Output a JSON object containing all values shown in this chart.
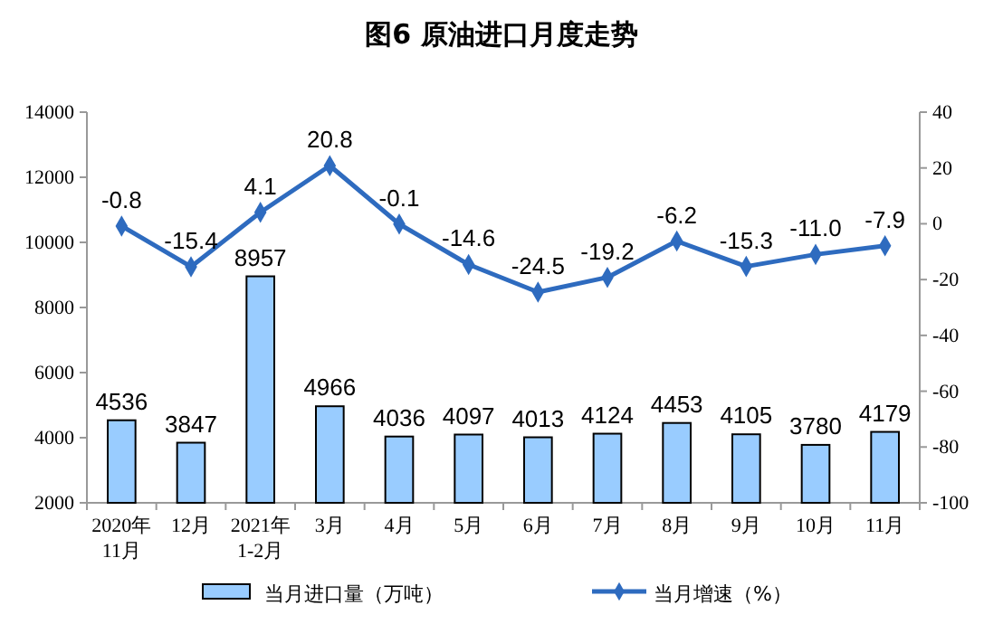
{
  "chart_data": {
    "type": "bar",
    "title": "图6  原油进口月度走势",
    "categories": [
      "2020年\n11月",
      "12月",
      "2021年\n1-2月",
      "3月",
      "4月",
      "5月",
      "6月",
      "7月",
      "8月",
      "9月",
      "10月",
      "11月"
    ],
    "series": [
      {
        "name": "当月进口量（万吨）",
        "color": "#99ccff",
        "values": [
          4536,
          3847,
          8957,
          4966,
          4036,
          4097,
          4013,
          4124,
          4453,
          4105,
          3780,
          4179
        ],
        "value_labels": [
          "4536",
          "3847",
          "8957",
          "4966",
          "4036",
          "4097",
          "4013",
          "4124",
          "4453",
          "4105",
          "3780",
          "4179"
        ]
      },
      {
        "name": "当月增速（%）",
        "type": "line",
        "axis": "y2",
        "color": "#2e6bbf",
        "marker": "diamond",
        "values": [
          -0.8,
          -15.4,
          4.1,
          20.8,
          -0.1,
          -14.6,
          -24.5,
          -19.2,
          -6.2,
          -15.3,
          -11.0,
          -7.9
        ],
        "value_labels": [
          "-0.8",
          "-15.4",
          "4.1",
          "20.8",
          "-0.1",
          "-14.6",
          "-24.5",
          "-19.2",
          "-6.2",
          "-15.3",
          "-11.0",
          "-7.9"
        ]
      }
    ],
    "ylim": [
      2000,
      14000
    ],
    "yticks": [
      2000,
      4000,
      6000,
      8000,
      10000,
      12000,
      14000
    ],
    "y2lim": [
      -100,
      40
    ],
    "y2ticks": [
      -100,
      -80,
      -60,
      -40,
      -20,
      0,
      20,
      40
    ],
    "grid": false,
    "legend": "bottom"
  }
}
